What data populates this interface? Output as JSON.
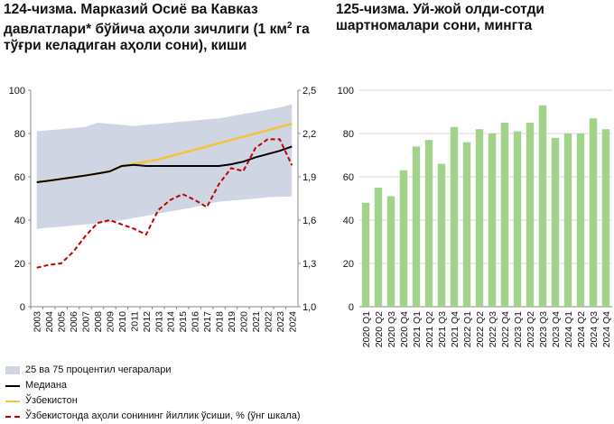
{
  "chart1": {
    "title_num": "124-чизма.",
    "title_rest": "Марказий Осиё ва Кавказ давлатлари* бўйича аҳоли зичлиги (1 км",
    "title_sup": "2",
    "title_end": " га тўғри келадиган аҳоли сони), киши",
    "legend": {
      "band": "25 ва 75 процентил чегаралари",
      "median": "Медиана",
      "uzbekistan": "Ўзбекистон",
      "growth": "Ўзбекистонда аҳоли сонининг йиллик ўсиши, % (ўнг шкала)"
    }
  },
  "chart2": {
    "title_num": "125-чизма.",
    "title_rest": "Уй-жой олди-сотди шартномалари сони, мингта"
  },
  "chart_data": [
    {
      "type": "line",
      "x": [
        "2003",
        "2004",
        "2005",
        "2006",
        "2007",
        "2008",
        "2009",
        "2010",
        "2011",
        "2012",
        "2013",
        "2014",
        "2015",
        "2016",
        "2017",
        "2018",
        "2019",
        "2020",
        "2021",
        "2022",
        "2023",
        "2024"
      ],
      "ylim": [
        0,
        100
      ],
      "yticks": [
        "0",
        "20",
        "40",
        "60",
        "80",
        "100"
      ],
      "y2lim": [
        1.0,
        2.5
      ],
      "y2ticks": [
        "1,0",
        "1,3",
        "1,6",
        "1,9",
        "2,2",
        "2,5"
      ],
      "series": [
        {
          "name": "25 ва 75 процентил чегаралари",
          "kind": "band",
          "color": "#cfd5e3",
          "lower": [
            36,
            36.5,
            37,
            37.5,
            38,
            38.5,
            39,
            40,
            41,
            42,
            43,
            44,
            45,
            46,
            47.5,
            48.5,
            49,
            49.5,
            50,
            50.5,
            50.8,
            51
          ],
          "upper": [
            81,
            81.5,
            82,
            82.5,
            83,
            85,
            84.5,
            84,
            83.5,
            84,
            84.5,
            85,
            85.5,
            86,
            86.5,
            87,
            88,
            89,
            90,
            91,
            92,
            93.5
          ]
        },
        {
          "name": "Медиана",
          "color": "#000000",
          "values": [
            57.5,
            58.2,
            59,
            59.8,
            60.6,
            61.5,
            62.5,
            65,
            65.5,
            65,
            65,
            65,
            65,
            65,
            65,
            65,
            65.8,
            67,
            69,
            70.5,
            72,
            74
          ]
        },
        {
          "name": "Ўзбекистон",
          "color": "#f5c23a",
          "values": [
            57.5,
            58.2,
            59,
            59.8,
            60.6,
            61.5,
            62.5,
            65,
            66,
            67,
            68,
            69.5,
            71,
            72.5,
            74,
            75.5,
            77,
            78.5,
            80,
            81.5,
            83,
            84.5
          ]
        },
        {
          "name": "Ўзбекистонда аҳоли сонининг йиллик ўсиши, % (ўнг шкала)",
          "color": "#c00000",
          "axis": "right",
          "values": [
            1.27,
            1.29,
            1.3,
            1.38,
            1.49,
            1.58,
            1.6,
            1.57,
            1.54,
            1.5,
            1.67,
            1.74,
            1.78,
            1.74,
            1.69,
            1.85,
            1.96,
            1.94,
            2.1,
            2.16,
            2.16,
            1.98
          ]
        }
      ]
    },
    {
      "type": "bar",
      "color": "#a3d38a",
      "categories": [
        "2020 Q1",
        "2020 Q2",
        "2020 Q3",
        "2020 Q4",
        "2021 Q1",
        "2021 Q2",
        "2021 Q3",
        "2021 Q4",
        "2022 Q1",
        "2022 Q2",
        "2022 Q3",
        "2022 Q4",
        "2023 Q1",
        "2023 Q2",
        "2023 Q3",
        "2023 Q4",
        "2024 Q1",
        "2024 Q2",
        "2024 Q3",
        "2024 Q4"
      ],
      "values": [
        48,
        55,
        51,
        63,
        74,
        77,
        66,
        83,
        76,
        82,
        80,
        85,
        81,
        85,
        93,
        78,
        80,
        80,
        87,
        82
      ],
      "ylim": [
        0,
        100
      ],
      "yticks": [
        "0",
        "20",
        "40",
        "60",
        "80",
        "100"
      ]
    }
  ]
}
